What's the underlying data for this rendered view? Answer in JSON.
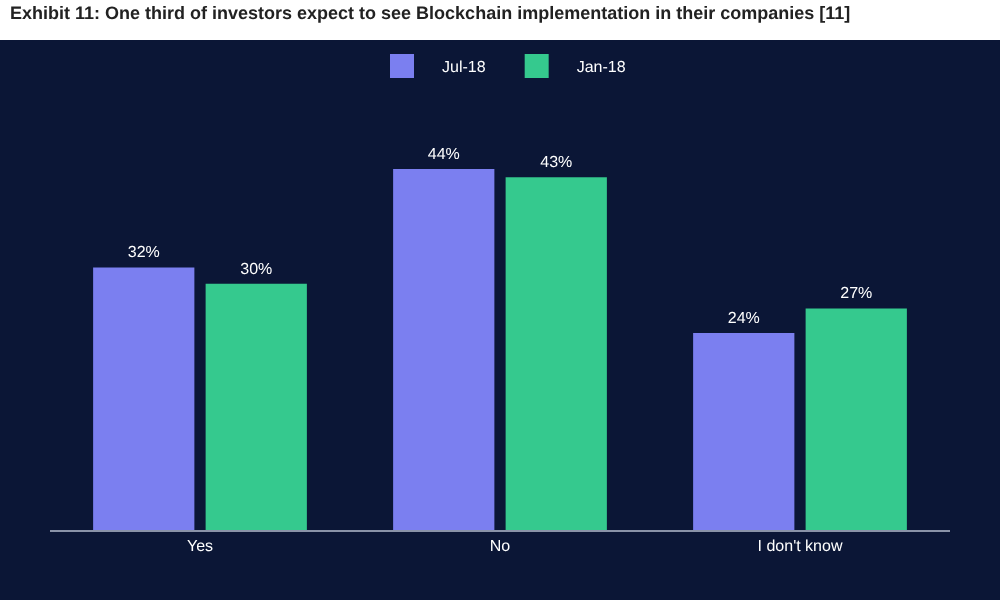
{
  "chart_data": {
    "type": "bar",
    "title": "Exhibit 11: One third of investors expect to see Blockchain implementation in their companies [11]",
    "categories": [
      "Yes",
      "No",
      "I don't know"
    ],
    "series": [
      {
        "name": "Jul-18",
        "color": "#7b7ff0",
        "values": [
          32,
          44,
          24
        ],
        "value_labels": [
          "32%",
          "44%",
          "24%"
        ]
      },
      {
        "name": "Jan-18",
        "color": "#35c98e",
        "values": [
          30,
          43,
          27
        ],
        "value_labels": [
          "30%",
          "43%",
          "27%"
        ]
      }
    ],
    "legend": "top",
    "grid": false
  }
}
